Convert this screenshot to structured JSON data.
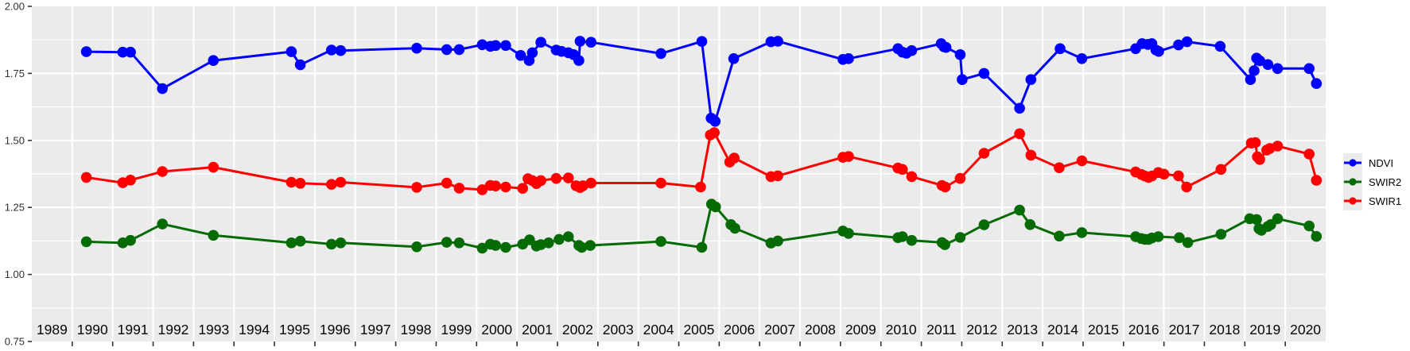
{
  "chart_data": {
    "type": "line",
    "title": "",
    "xlabel": "",
    "ylabel": "",
    "x_domain": [
      1988.5,
      2020.5
    ],
    "y_domain": [
      0.75,
      2.0
    ],
    "grid": {
      "horizontal_major_step": 0.25,
      "horizontal_minor_step": 0.125,
      "vertical_at_year_boundaries": true
    },
    "y_ticks": [
      {
        "label": "0.75",
        "value": 0.75
      },
      {
        "label": "1.00",
        "value": 1.0
      },
      {
        "label": "1.25",
        "value": 1.25
      },
      {
        "label": "1.50",
        "value": 1.5
      },
      {
        "label": "1.75",
        "value": 1.75
      },
      {
        "label": "2.00",
        "value": 2.0
      }
    ],
    "x_year_labels": [
      "1989",
      "1990",
      "1991",
      "1992",
      "1993",
      "1994",
      "1995",
      "1996",
      "1997",
      "1998",
      "1999",
      "2000",
      "2001",
      "2002",
      "2003",
      "2004",
      "2005",
      "2006",
      "2007",
      "2008",
      "2009",
      "2010",
      "2011",
      "2012",
      "2013",
      "2014",
      "2015",
      "2016",
      "2017",
      "2018",
      "2019",
      "2020"
    ],
    "legend": {
      "position": "right",
      "entries": [
        {
          "label": "NDVI",
          "color": "#0000FF"
        },
        {
          "label": "SWIR2",
          "color": "#056B05"
        },
        {
          "label": "SWIR1",
          "color": "#FF0000"
        }
      ]
    },
    "series": [
      {
        "name": "NDVI",
        "color": "#0000FF",
        "points": [
          [
            1989.85,
            1.831
          ],
          [
            1990.75,
            1.829
          ],
          [
            1990.94,
            1.829
          ],
          [
            1991.73,
            1.693
          ],
          [
            1992.99,
            1.798
          ],
          [
            1994.92,
            1.831
          ],
          [
            1995.14,
            1.782
          ],
          [
            1995.91,
            1.837
          ],
          [
            1996.14,
            1.835
          ],
          [
            1998.02,
            1.844
          ],
          [
            1998.76,
            1.839
          ],
          [
            1999.07,
            1.839
          ],
          [
            1999.64,
            1.857
          ],
          [
            1999.84,
            1.851
          ],
          [
            1999.97,
            1.854
          ],
          [
            2000.22,
            1.854
          ],
          [
            2000.59,
            1.817
          ],
          [
            2000.8,
            1.798
          ],
          [
            2000.88,
            1.827
          ],
          [
            2001.09,
            1.866
          ],
          [
            2001.47,
            1.837
          ],
          [
            2001.6,
            1.832
          ],
          [
            2001.77,
            1.827
          ],
          [
            2001.9,
            1.82
          ],
          [
            2002.03,
            1.798
          ],
          [
            2002.06,
            1.87
          ],
          [
            2002.33,
            1.866
          ],
          [
            2004.06,
            1.824
          ],
          [
            2005.07,
            1.869
          ],
          [
            2005.3,
            1.583
          ],
          [
            2005.4,
            1.571
          ],
          [
            2005.86,
            1.805
          ],
          [
            2006.78,
            1.868
          ],
          [
            2006.95,
            1.87
          ],
          [
            2008.56,
            1.802
          ],
          [
            2008.7,
            1.805
          ],
          [
            2009.92,
            1.842
          ],
          [
            2010.03,
            1.829
          ],
          [
            2010.13,
            1.825
          ],
          [
            2010.26,
            1.835
          ],
          [
            2010.99,
            1.861
          ],
          [
            2011.06,
            1.849
          ],
          [
            2011.11,
            1.847
          ],
          [
            2011.46,
            1.82
          ],
          [
            2011.51,
            1.727
          ],
          [
            2012.05,
            1.75
          ],
          [
            2012.93,
            1.62
          ],
          [
            2013.21,
            1.727
          ],
          [
            2013.93,
            1.842
          ],
          [
            2014.47,
            1.805
          ],
          [
            2015.8,
            1.842
          ],
          [
            2015.96,
            1.861
          ],
          [
            2016.1,
            1.858
          ],
          [
            2016.2,
            1.861
          ],
          [
            2016.3,
            1.837
          ],
          [
            2016.37,
            1.832
          ],
          [
            2016.86,
            1.856
          ],
          [
            2017.07,
            1.868
          ],
          [
            2017.89,
            1.851
          ],
          [
            2018.64,
            1.727
          ],
          [
            2018.73,
            1.76
          ],
          [
            2018.79,
            1.807
          ],
          [
            2018.87,
            1.797
          ],
          [
            2019.07,
            1.783
          ],
          [
            2019.31,
            1.768
          ],
          [
            2020.09,
            1.768
          ],
          [
            2020.27,
            1.712
          ]
        ]
      },
      {
        "name": "SWIR2",
        "color": "#056B05",
        "points": [
          [
            1989.85,
            1.122
          ],
          [
            1990.75,
            1.118
          ],
          [
            1990.94,
            1.127
          ],
          [
            1991.73,
            1.188
          ],
          [
            1992.99,
            1.146
          ],
          [
            1994.92,
            1.118
          ],
          [
            1995.14,
            1.124
          ],
          [
            1995.91,
            1.113
          ],
          [
            1996.14,
            1.118
          ],
          [
            1998.02,
            1.103
          ],
          [
            1998.76,
            1.12
          ],
          [
            1999.07,
            1.118
          ],
          [
            1999.64,
            1.098
          ],
          [
            1999.84,
            1.113
          ],
          [
            1999.97,
            1.108
          ],
          [
            2000.22,
            1.101
          ],
          [
            2000.64,
            1.113
          ],
          [
            2000.81,
            1.129
          ],
          [
            2000.98,
            1.106
          ],
          [
            2001.09,
            1.111
          ],
          [
            2001.28,
            1.118
          ],
          [
            2001.54,
            1.131
          ],
          [
            2001.77,
            1.141
          ],
          [
            2002.03,
            1.108
          ],
          [
            2002.1,
            1.101
          ],
          [
            2002.31,
            1.108
          ],
          [
            2004.06,
            1.123
          ],
          [
            2005.07,
            1.101
          ],
          [
            2005.31,
            1.262
          ],
          [
            2005.41,
            1.252
          ],
          [
            2005.79,
            1.186
          ],
          [
            2005.89,
            1.172
          ],
          [
            2006.78,
            1.117
          ],
          [
            2006.95,
            1.125
          ],
          [
            2008.56,
            1.162
          ],
          [
            2008.7,
            1.153
          ],
          [
            2009.92,
            1.137
          ],
          [
            2010.03,
            1.141
          ],
          [
            2010.26,
            1.127
          ],
          [
            2011.01,
            1.119
          ],
          [
            2011.08,
            1.111
          ],
          [
            2011.46,
            1.138
          ],
          [
            2012.05,
            1.185
          ],
          [
            2012.93,
            1.24
          ],
          [
            2013.19,
            1.186
          ],
          [
            2013.91,
            1.143
          ],
          [
            2014.47,
            1.156
          ],
          [
            2015.8,
            1.141
          ],
          [
            2015.94,
            1.134
          ],
          [
            2016.03,
            1.131
          ],
          [
            2016.12,
            1.131
          ],
          [
            2016.2,
            1.136
          ],
          [
            2016.36,
            1.141
          ],
          [
            2016.88,
            1.137
          ],
          [
            2017.09,
            1.119
          ],
          [
            2017.91,
            1.15
          ],
          [
            2018.62,
            1.208
          ],
          [
            2018.79,
            1.205
          ],
          [
            2018.85,
            1.171
          ],
          [
            2018.91,
            1.165
          ],
          [
            2019.07,
            1.179
          ],
          [
            2019.14,
            1.186
          ],
          [
            2019.31,
            1.208
          ],
          [
            2020.09,
            1.181
          ],
          [
            2020.27,
            1.142
          ]
        ]
      },
      {
        "name": "SWIR1",
        "color": "#FF0000",
        "points": [
          [
            1989.85,
            1.362
          ],
          [
            1990.75,
            1.342
          ],
          [
            1990.94,
            1.352
          ],
          [
            1991.73,
            1.384
          ],
          [
            1992.99,
            1.4
          ],
          [
            1994.92,
            1.344
          ],
          [
            1995.14,
            1.34
          ],
          [
            1995.91,
            1.336
          ],
          [
            1996.14,
            1.344
          ],
          [
            1998.02,
            1.325
          ],
          [
            1998.76,
            1.341
          ],
          [
            1999.07,
            1.322
          ],
          [
            1999.64,
            1.316
          ],
          [
            1999.84,
            1.332
          ],
          [
            1999.97,
            1.33
          ],
          [
            2000.22,
            1.326
          ],
          [
            2000.64,
            1.321
          ],
          [
            2000.77,
            1.357
          ],
          [
            2000.88,
            1.35
          ],
          [
            2000.98,
            1.339
          ],
          [
            2001.09,
            1.35
          ],
          [
            2001.47,
            1.358
          ],
          [
            2001.77,
            1.36
          ],
          [
            2001.96,
            1.331
          ],
          [
            2002.06,
            1.324
          ],
          [
            2002.13,
            1.331
          ],
          [
            2002.33,
            1.341
          ],
          [
            2004.06,
            1.341
          ],
          [
            2005.04,
            1.326
          ],
          [
            2005.28,
            1.52
          ],
          [
            2005.38,
            1.529
          ],
          [
            2005.76,
            1.419
          ],
          [
            2005.87,
            1.434
          ],
          [
            2006.78,
            1.365
          ],
          [
            2006.95,
            1.368
          ],
          [
            2008.56,
            1.437
          ],
          [
            2008.7,
            1.44
          ],
          [
            2009.92,
            1.397
          ],
          [
            2010.03,
            1.392
          ],
          [
            2010.26,
            1.365
          ],
          [
            2011.01,
            1.332
          ],
          [
            2011.09,
            1.326
          ],
          [
            2011.46,
            1.358
          ],
          [
            2012.05,
            1.452
          ],
          [
            2012.93,
            1.525
          ],
          [
            2013.21,
            1.445
          ],
          [
            2013.91,
            1.398
          ],
          [
            2014.47,
            1.424
          ],
          [
            2015.8,
            1.382
          ],
          [
            2015.94,
            1.373
          ],
          [
            2016.03,
            1.367
          ],
          [
            2016.12,
            1.362
          ],
          [
            2016.2,
            1.367
          ],
          [
            2016.36,
            1.38
          ],
          [
            2016.5,
            1.374
          ],
          [
            2016.86,
            1.368
          ],
          [
            2017.06,
            1.326
          ],
          [
            2017.91,
            1.392
          ],
          [
            2018.66,
            1.49
          ],
          [
            2018.76,
            1.492
          ],
          [
            2018.81,
            1.439
          ],
          [
            2018.87,
            1.429
          ],
          [
            2019.04,
            1.464
          ],
          [
            2019.12,
            1.47
          ],
          [
            2019.31,
            1.479
          ],
          [
            2020.09,
            1.449
          ],
          [
            2020.27,
            1.351
          ]
        ]
      }
    ]
  },
  "colors": {
    "page_bg": "#FFFFFF",
    "panel_bg": "#EBEBEB",
    "grid": "#FFFFFF",
    "tick": "#333333",
    "y_axis_text": "#303030",
    "year_text": "#050505",
    "legend_key_bg": "#EBEBEB"
  }
}
